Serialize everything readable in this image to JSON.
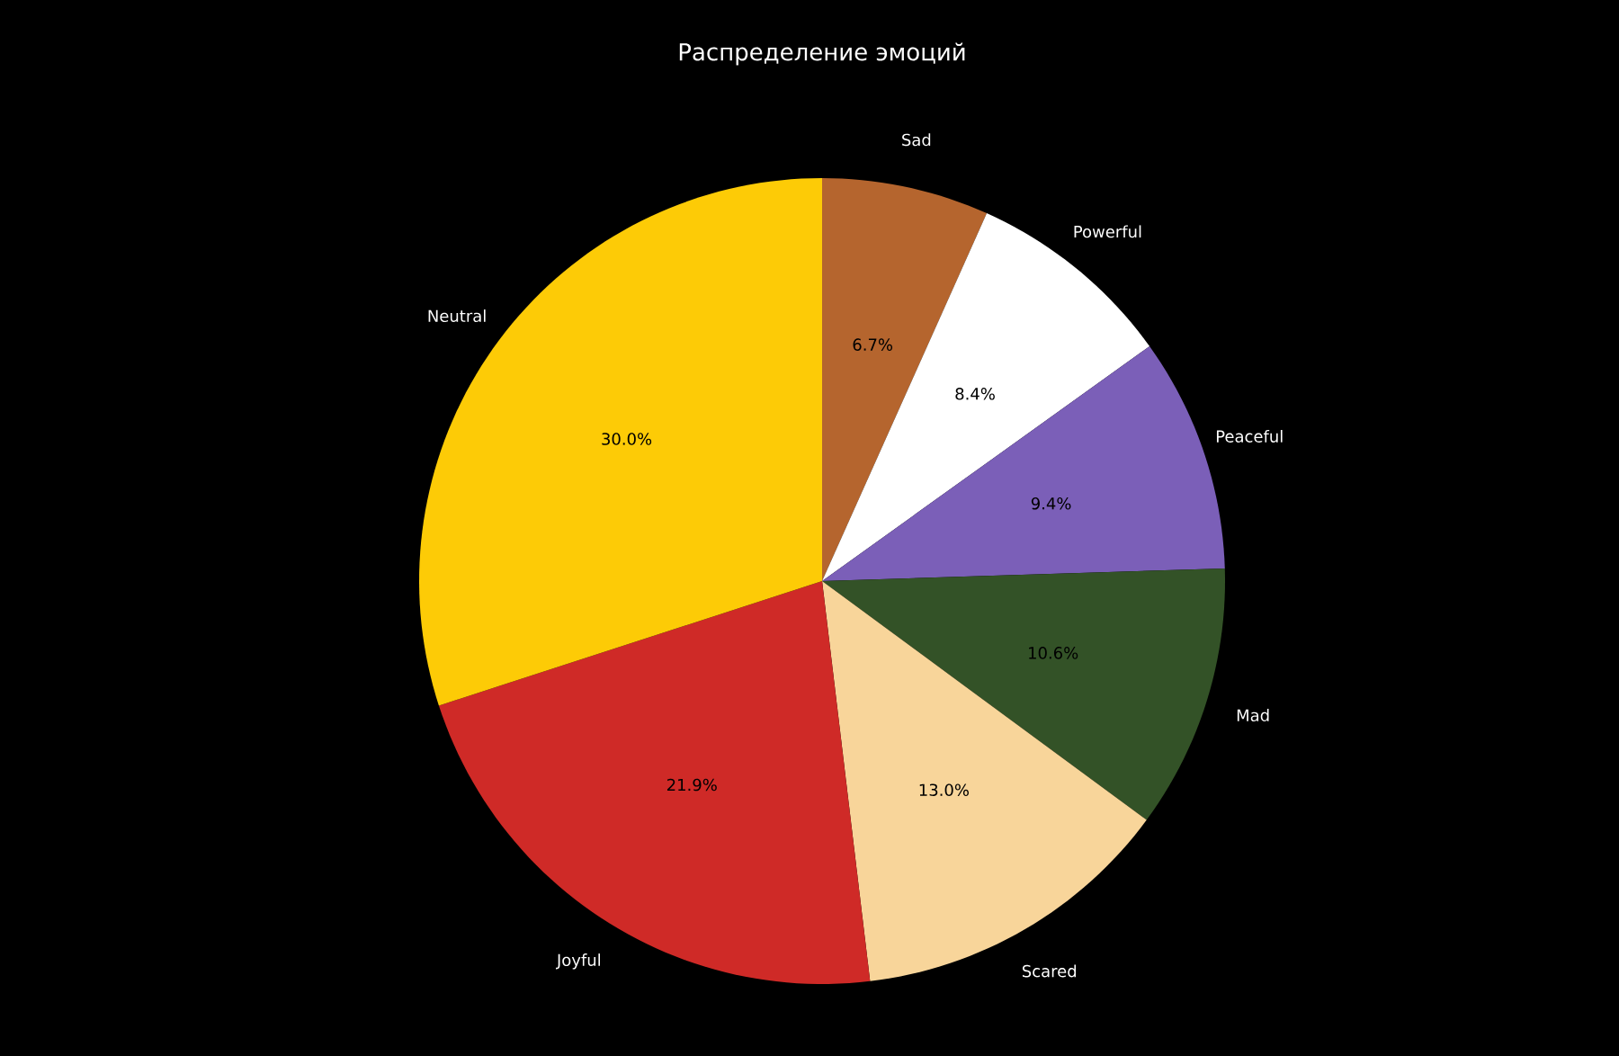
{
  "chart_data": {
    "type": "pie",
    "title": "Распределение эмоций",
    "categories": [
      "Sad",
      "Powerful",
      "Peaceful",
      "Mad",
      "Scared",
      "Joyful",
      "Neutral"
    ],
    "values": [
      6.7,
      8.4,
      9.4,
      10.6,
      13.0,
      21.9,
      30.0
    ],
    "value_labels": [
      "6.7%",
      "8.4%",
      "9.4%",
      "10.6%",
      "13.0%",
      "21.9%",
      "30.0%"
    ],
    "colors": [
      "#b5652e",
      "#ffffff",
      "#7b5fb8",
      "#335227",
      "#f8d59a",
      "#cf2a27",
      "#fdcb06"
    ]
  }
}
